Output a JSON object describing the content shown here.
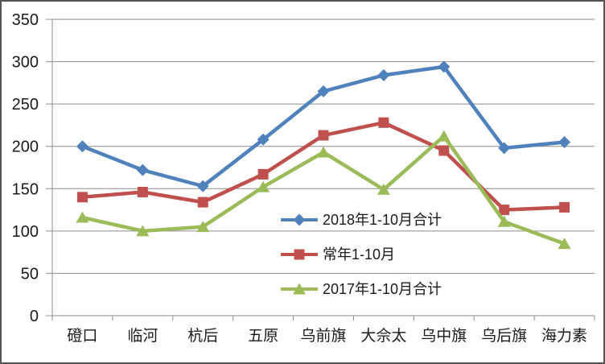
{
  "chart_data": {
    "type": "line",
    "categories": [
      "磴口",
      "临河",
      "杭后",
      "五原",
      "乌前旗",
      "大佘太",
      "乌中旗",
      "乌后旗",
      "海力素"
    ],
    "series": [
      {
        "name": "2018年1-10月合计",
        "marker": "diamond",
        "color": "#4F81BD",
        "values": [
          200,
          172,
          153,
          208,
          265,
          284,
          294,
          198,
          205
        ]
      },
      {
        "name": "常年1-10月",
        "marker": "square",
        "color": "#C0504D",
        "values": [
          140,
          146,
          134,
          167,
          213,
          228,
          195,
          125,
          128
        ]
      },
      {
        "name": "2017年1-10月合计",
        "marker": "triangle",
        "color": "#9BBB59",
        "values": [
          116,
          100,
          105,
          152,
          193,
          149,
          212,
          111,
          85
        ]
      }
    ],
    "title": "",
    "xlabel": "",
    "ylabel": "",
    "ylim": [
      0,
      350
    ],
    "y_ticks": [
      0,
      50,
      100,
      150,
      200,
      250,
      300,
      350
    ],
    "grid": true,
    "legend_position": "inside-plot-center-left"
  },
  "colors": {
    "gridline": "#8C8C8C",
    "axis": "#8C8C8C",
    "text": "#1a1a1a",
    "frame_border": "#555555",
    "background": "#ffffff"
  }
}
